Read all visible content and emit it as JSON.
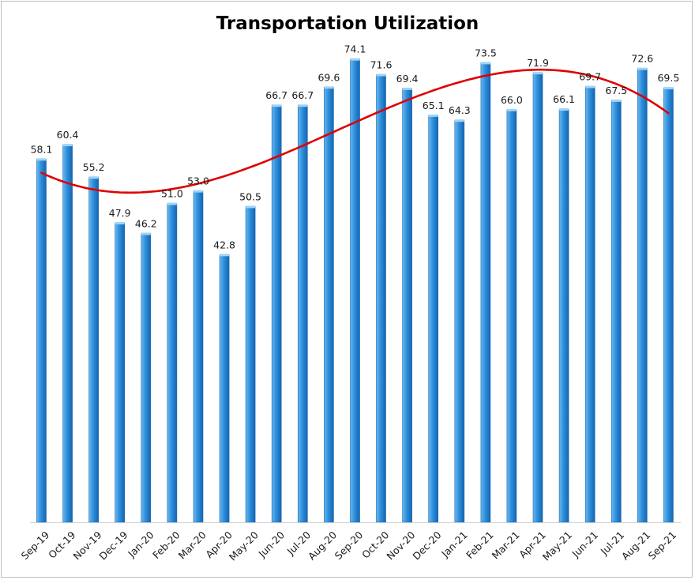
{
  "chart_data": {
    "type": "bar",
    "title": "Transportation Utilization",
    "xlabel": "",
    "ylabel": "",
    "ylim": [
      0,
      80
    ],
    "grid": false,
    "legend": "none",
    "trendline": {
      "type": "polynomial",
      "color": "#e00000"
    },
    "categories": [
      "Sep-19",
      "Oct-19",
      "Nov-19",
      "Dec-19",
      "Jan-20",
      "Feb-20",
      "Mar-20",
      "Apr-20",
      "May-20",
      "Jun-20",
      "Jul-20",
      "Aug-20",
      "Sep-20",
      "Oct-20",
      "Nov-20",
      "Dec-20",
      "Jan-21",
      "Feb-21",
      "Mar-21",
      "Apr-21",
      "May-21",
      "Jun-21",
      "Jul-21",
      "Aug-21",
      "Sep-21"
    ],
    "values": [
      58.1,
      60.4,
      55.2,
      47.9,
      46.2,
      51.0,
      53.0,
      42.8,
      50.5,
      66.7,
      66.7,
      69.6,
      74.1,
      71.6,
      69.4,
      65.1,
      64.3,
      73.5,
      66.0,
      71.9,
      66.1,
      69.7,
      67.5,
      72.6,
      69.5
    ],
    "labels": [
      "58.1",
      "60.4",
      "55.2",
      "47.9",
      "46.2",
      "51.0",
      "53.0",
      "42.8",
      "50.5",
      "66.7",
      "66.7",
      "69.6",
      "74.1",
      "71.6",
      "69.4",
      "65.1",
      "64.3",
      "73.5",
      "66.0",
      "71.9",
      "66.1",
      "69.7",
      "67.5",
      "72.6",
      "69.5"
    ],
    "colors": {
      "bar_light": "#6ab8f0",
      "bar_mid": "#2e8fdc",
      "bar_dark": "#1565b0",
      "trend": "#e00000",
      "axis": "#d0d0d0"
    }
  }
}
